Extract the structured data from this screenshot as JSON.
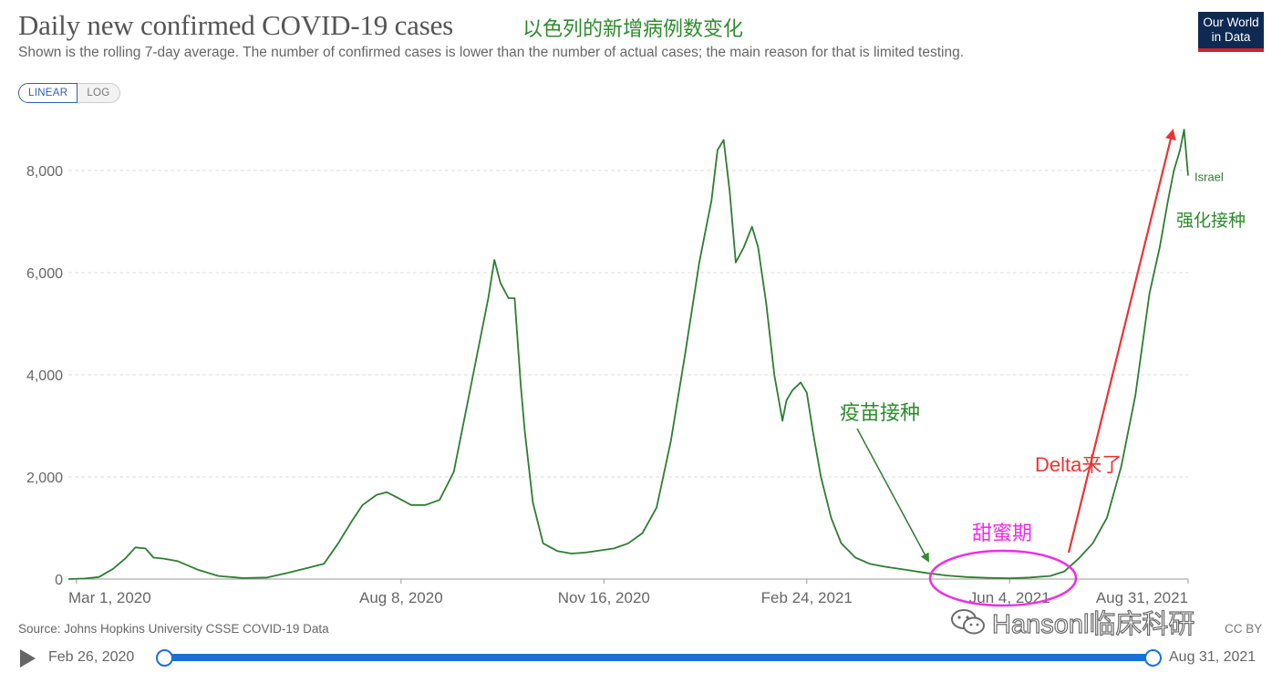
{
  "header": {
    "title": "Daily new confirmed COVID-19 cases",
    "title_annotation": "以色列的新增病例数变化",
    "subtitle": "Shown is the rolling 7-day average. The number of confirmed cases is lower than the number of actual cases; the main reason for that is limited testing.",
    "logo_line1": "Our World",
    "logo_line2": "in Data"
  },
  "scale_toggle": {
    "linear": "LINEAR",
    "log": "LOG",
    "selected": "LINEAR"
  },
  "chart_data": {
    "type": "line",
    "title": "Daily new confirmed COVID-19 cases",
    "xlabel": "",
    "ylabel": "",
    "ylim": [
      0,
      9000
    ],
    "y_ticks": [
      0,
      2000,
      4000,
      6000,
      8000
    ],
    "y_tick_labels": [
      "0",
      "2,000",
      "4,000",
      "6,000",
      "8,000"
    ],
    "x_tick_labels": [
      "Mar 1, 2020",
      "Aug 8, 2020",
      "Nov 16, 2020",
      "Feb 24, 2021",
      "Jun 4, 2021",
      "Aug 31, 2021"
    ],
    "x_tick_dates": [
      "2020-03-01",
      "2020-08-08",
      "2020-11-16",
      "2021-02-24",
      "2021-06-04",
      "2021-08-31"
    ],
    "grid": "horizontal dashed",
    "line_color": "#2e7d32",
    "series": [
      {
        "name": "Israel",
        "x": [
          "2020-02-26",
          "2020-03-05",
          "2020-03-12",
          "2020-03-19",
          "2020-03-25",
          "2020-03-30",
          "2020-04-04",
          "2020-04-08",
          "2020-04-13",
          "2020-04-20",
          "2020-04-30",
          "2020-05-10",
          "2020-05-22",
          "2020-06-03",
          "2020-06-13",
          "2020-06-23",
          "2020-07-01",
          "2020-07-08",
          "2020-07-15",
          "2020-07-20",
          "2020-07-27",
          "2020-08-01",
          "2020-08-06",
          "2020-08-13",
          "2020-08-20",
          "2020-08-27",
          "2020-09-03",
          "2020-09-10",
          "2020-09-15",
          "2020-09-20",
          "2020-09-23",
          "2020-09-26",
          "2020-09-30",
          "2020-10-03",
          "2020-10-06",
          "2020-10-08",
          "2020-10-12",
          "2020-10-17",
          "2020-10-24",
          "2020-10-31",
          "2020-11-07",
          "2020-11-14",
          "2020-11-21",
          "2020-11-28",
          "2020-12-05",
          "2020-12-12",
          "2020-12-19",
          "2020-12-26",
          "2021-01-02",
          "2021-01-05",
          "2021-01-08",
          "2021-01-11",
          "2021-01-14",
          "2021-01-17",
          "2021-01-20",
          "2021-01-24",
          "2021-01-28",
          "2021-01-31",
          "2021-02-04",
          "2021-02-08",
          "2021-02-12",
          "2021-02-14",
          "2021-02-17",
          "2021-02-21",
          "2021-02-24",
          "2021-02-27",
          "2021-03-03",
          "2021-03-08",
          "2021-03-13",
          "2021-03-20",
          "2021-03-27",
          "2021-04-04",
          "2021-04-14",
          "2021-04-24",
          "2021-05-04",
          "2021-05-14",
          "2021-05-24",
          "2021-06-04",
          "2021-06-14",
          "2021-06-24",
          "2021-07-01",
          "2021-07-08",
          "2021-07-15",
          "2021-07-22",
          "2021-07-29",
          "2021-08-05",
          "2021-08-12",
          "2021-08-17",
          "2021-08-21",
          "2021-08-24",
          "2021-08-27",
          "2021-08-29",
          "2021-08-31"
        ],
        "y": [
          0,
          10,
          40,
          200,
          400,
          620,
          600,
          420,
          400,
          350,
          180,
          60,
          20,
          30,
          120,
          220,
          300,
          700,
          1150,
          1450,
          1650,
          1700,
          1600,
          1450,
          1450,
          1550,
          2100,
          3500,
          4500,
          5500,
          6250,
          5800,
          5500,
          5500,
          3800,
          2900,
          1500,
          700,
          550,
          500,
          520,
          560,
          600,
          700,
          900,
          1400,
          2700,
          4400,
          6200,
          6800,
          7400,
          8400,
          8600,
          7600,
          6200,
          6500,
          6900,
          6500,
          5400,
          4000,
          3100,
          3500,
          3700,
          3850,
          3650,
          2900,
          2000,
          1200,
          700,
          420,
          300,
          240,
          180,
          120,
          70,
          40,
          25,
          15,
          30,
          60,
          150,
          400,
          700,
          1200,
          2200,
          3600,
          5600,
          6500,
          7400,
          8000,
          8400,
          8800,
          7900
        ]
      }
    ],
    "annotations": [
      "疫苗接种",
      "甜蜜期",
      "Delta来了",
      "强化接种"
    ]
  },
  "annotations_cn": {
    "vaccination": "疫苗接种",
    "honeymoon": "甜蜜期",
    "delta": "Delta来了",
    "booster": "强化接种"
  },
  "colors": {
    "line": "#2e7d32",
    "grid": "#dddddd",
    "annotation_green": "#2e8b2e",
    "annotation_magenta": "#ee2ee5",
    "annotation_red": "#ee3333",
    "slider": "#1b6fd6",
    "logo_bg": "#0f2a52",
    "logo_accent": "#d2232a"
  },
  "footer": {
    "source": "Source: Johns Hopkins University CSSE COVID-19 Data",
    "license": "CC BY",
    "watermark": "Hansonl临床科研"
  },
  "timeline": {
    "start_label": "Feb 26, 2020",
    "end_label": "Aug 31, 2021",
    "play_icon": "play-icon"
  }
}
